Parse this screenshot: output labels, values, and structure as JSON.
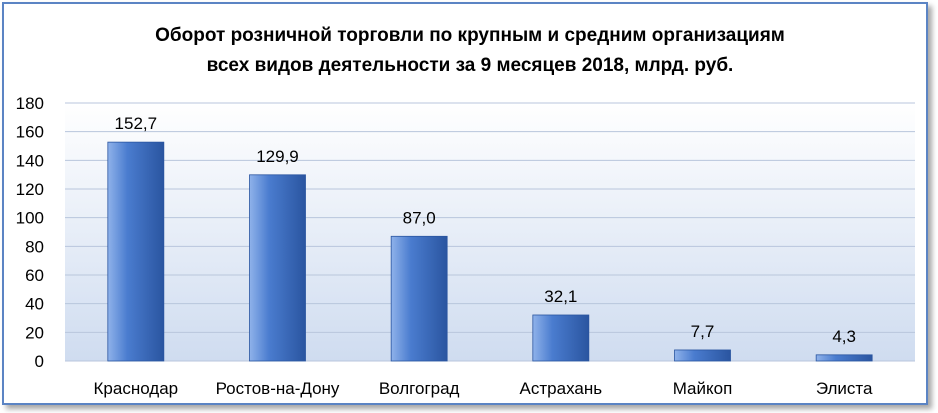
{
  "chart_data": {
    "type": "bar",
    "title": [
      "Оборот розничной торговли по крупным и средним организациям",
      "всех видов деятельности за 9 месяцев 2018, млрд. руб."
    ],
    "categories": [
      "Краснодар",
      "Ростов-на-Дону",
      "Волгоград",
      "Астрахань",
      "Майкоп",
      "Элиста"
    ],
    "values": [
      152.7,
      129.9,
      87.0,
      32.1,
      7.7,
      4.3
    ],
    "value_labels": [
      "152,7",
      "129,9",
      "87,0",
      "32,1",
      "7,7",
      "4,3"
    ],
    "ylim": [
      0,
      180
    ],
    "yticks": [
      "0",
      "20",
      "40",
      "60",
      "80",
      "100",
      "120",
      "140",
      "160",
      "180"
    ],
    "grid": true,
    "legend": "none",
    "colors": {
      "bar": "#4a7ccf",
      "bar_light": "#8fb2ea",
      "bar_dark": "#2a55a0",
      "plot_bg_top": "#ffffff",
      "plot_bg_bottom": "#cfdcf0",
      "grid": "#b8c6dc",
      "frame": "#5b84c4"
    }
  }
}
